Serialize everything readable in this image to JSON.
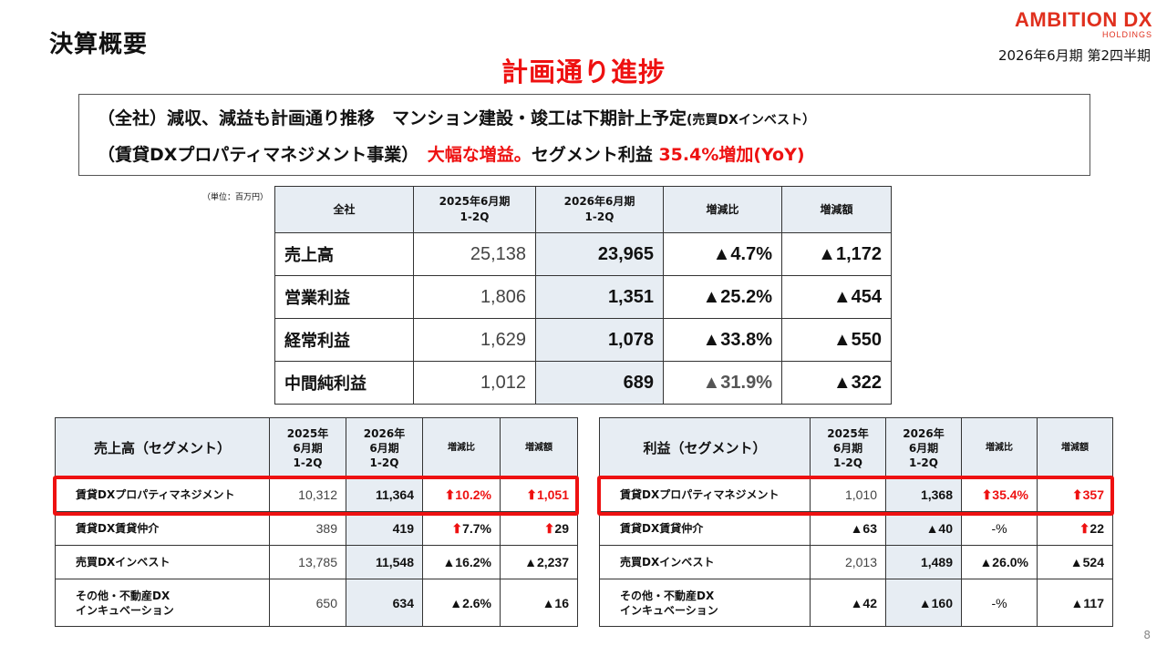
{
  "header": {
    "title": "決算概要",
    "logo_brand": "AMBITION DX",
    "logo_sub": "HOLDINGS",
    "period": "2026年6月期 第2四半期"
  },
  "headline": "計画通り進捗",
  "summary": {
    "line1_main": "（全社）減収、減益も計画通り推移　マンション建設・竣工は下期計上予定",
    "line1_small": "(売買DXインベスト）",
    "line2_black": "（賃貸DXプロパティマネジメント事業）　",
    "line2_red1": "大幅な増益。",
    "line2_black2": "セグメント利益 ",
    "line2_red2": "35.4%増加(YoY)"
  },
  "unit": "（単位：百万円）",
  "main_table": {
    "headers": [
      "全社",
      "2025年6月期\n1-2Q",
      "2026年6月期\n1-2Q",
      "増減比",
      "増減額"
    ],
    "rows": [
      {
        "label": "売上高",
        "prev": "25,138",
        "cur": "23,965",
        "ratio": "▲4.7%",
        "diff": "▲1,172"
      },
      {
        "label": "営業利益",
        "prev": "1,806",
        "cur": "1,351",
        "ratio": "▲25.2%",
        "diff": "▲454"
      },
      {
        "label": "経常利益",
        "prev": "1,629",
        "cur": "1,078",
        "ratio": "▲33.8%",
        "diff": "▲550"
      },
      {
        "label": "中間純利益",
        "prev": "1,012",
        "cur": "689",
        "ratio": "▲31.9%",
        "diff": "▲322"
      }
    ]
  },
  "sales_segment": {
    "headers": [
      "売上高（セグメント）",
      "2025年\n6月期\n1-2Q",
      "2026年\n6月期\n1-2Q",
      "増減比",
      "増減額"
    ],
    "rows": [
      {
        "label": "賃貸DXプロパティマネジメント",
        "prev": "10,312",
        "cur": "11,364",
        "ratio": "⬆10.2%",
        "diff": "⬆1,051"
      },
      {
        "label": "賃貸DX賃貸仲介",
        "prev": "389",
        "cur": "419",
        "ratio": "⬆7.7%",
        "diff": "⬆29"
      },
      {
        "label": "売買DXインベスト",
        "prev": "13,785",
        "cur": "11,548",
        "ratio": "▲16.2%",
        "diff": "▲2,237"
      },
      {
        "label": "その他・不動産DX\nインキュベーション",
        "prev": "650",
        "cur": "634",
        "ratio": "▲2.6%",
        "diff": "▲16"
      }
    ]
  },
  "profit_segment": {
    "headers": [
      "利益（セグメント）",
      "2025年\n6月期\n1-2Q",
      "2026年\n6月期\n1-2Q",
      "増減比",
      "増減額"
    ],
    "rows": [
      {
        "label": "賃貸DXプロパティマネジメント",
        "prev": "1,010",
        "cur": "1,368",
        "ratio": "⬆35.4%",
        "diff": "⬆357"
      },
      {
        "label": "賃貸DX賃貸仲介",
        "prev": "▲63",
        "cur": "▲40",
        "ratio": "-%",
        "diff": "⬆22"
      },
      {
        "label": "売買DXインベスト",
        "prev": "2,013",
        "cur": "1,489",
        "ratio": "▲26.0%",
        "diff": "▲524"
      },
      {
        "label": "その他・不動産DX\nインキュベーション",
        "prev": "▲42",
        "cur": "▲160",
        "ratio": "-%",
        "diff": "▲117"
      }
    ]
  },
  "page_number": "8",
  "colors": {
    "accent_red": "#ee1111",
    "brand_red": "#e0301e",
    "header_bg": "#e7edf3"
  }
}
